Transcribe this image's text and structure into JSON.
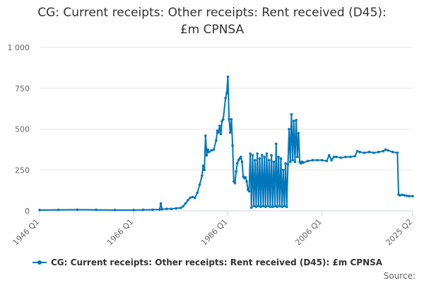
{
  "title_line1": "CG: Current receipts: Other receipts: Rent received (D45):",
  "title_line2": "£m CPNSA",
  "source_label": "Source:",
  "colors": {
    "series": "#0077bb",
    "grid": "#e6e6e6",
    "axis": "#ccd6eb"
  },
  "chart_data": {
    "type": "line",
    "x_axis_type": "quarter",
    "xlim": [
      "1946 Q1",
      "2025 Q2"
    ],
    "x_ticks": [
      "1946 Q1",
      "1966 Q1",
      "1986 Q1",
      "2006 Q1",
      "2025 Q2"
    ],
    "ylim": [
      0,
      1000
    ],
    "y_ticks": [
      0,
      250,
      500,
      750,
      1000
    ],
    "y_tick_labels": [
      "0",
      "250",
      "500",
      "750",
      "1 000"
    ],
    "grid": "horizontal",
    "legend_position": "bottom",
    "series": [
      {
        "name": "CG: Current receipts: Other receipts: Rent received (D45): £m CPNSA",
        "points": [
          [
            "1946 Q1",
            5
          ],
          [
            "1950 Q1",
            6
          ],
          [
            "1954 Q1",
            7
          ],
          [
            "1958 Q1",
            6
          ],
          [
            "1962 Q1",
            5
          ],
          [
            "1966 Q1",
            5
          ],
          [
            "1968 Q1",
            6
          ],
          [
            "1970 Q1",
            7
          ],
          [
            "1971 Q3",
            8
          ],
          [
            "1971 Q4",
            45
          ],
          [
            "1972 Q1",
            10
          ],
          [
            "1973 Q1",
            12
          ],
          [
            "1974 Q1",
            12
          ],
          [
            "1975 Q1",
            15
          ],
          [
            "1976 Q1",
            18
          ],
          [
            "1976 Q3",
            28
          ],
          [
            "1977 Q1",
            45
          ],
          [
            "1977 Q3",
            65
          ],
          [
            "1978 Q1",
            80
          ],
          [
            "1978 Q3",
            85
          ],
          [
            "1979 Q1",
            80
          ],
          [
            "1979 Q3",
            110
          ],
          [
            "1980 Q1",
            160
          ],
          [
            "1980 Q3",
            215
          ],
          [
            "1980 Q4",
            275
          ],
          [
            "1981 Q1",
            250
          ],
          [
            "1981 Q2",
            460
          ],
          [
            "1981 Q3",
            340
          ],
          [
            "1981 Q4",
            375
          ],
          [
            "1982 Q1",
            360
          ],
          [
            "1982 Q3",
            370
          ],
          [
            "1983 Q1",
            375
          ],
          [
            "1983 Q3",
            430
          ],
          [
            "1983 Q4",
            490
          ],
          [
            "1984 Q1",
            480
          ],
          [
            "1984 Q2",
            520
          ],
          [
            "1984 Q3",
            470
          ],
          [
            "1984 Q4",
            550
          ],
          [
            "1985 Q1",
            560
          ],
          [
            "1985 Q3",
            690
          ],
          [
            "1985 Q4",
            720
          ],
          [
            "1986 Q1",
            820
          ],
          [
            "1986 Q2",
            560
          ],
          [
            "1986 Q3",
            480
          ],
          [
            "1986 Q4",
            560
          ],
          [
            "1987 Q1",
            400
          ],
          [
            "1987 Q2",
            180
          ],
          [
            "1987 Q3",
            170
          ],
          [
            "1987 Q4",
            240
          ],
          [
            "1988 Q1",
            290
          ],
          [
            "1988 Q2",
            310
          ],
          [
            "1988 Q3",
            320
          ],
          [
            "1988 Q4",
            330
          ],
          [
            "1989 Q1",
            300
          ],
          [
            "1989 Q2",
            210
          ],
          [
            "1989 Q3",
            200
          ],
          [
            "1989 Q4",
            205
          ],
          [
            "1990 Q1",
            180
          ],
          [
            "1990 Q2",
            130
          ],
          [
            "1990 Q3",
            120
          ],
          [
            "1990 Q4",
            350
          ],
          [
            "1991 Q1",
            20
          ],
          [
            "1991 Q2",
            340
          ],
          [
            "1991 Q3",
            30
          ],
          [
            "1991 Q4",
            310
          ],
          [
            "1992 Q1",
            25
          ],
          [
            "1992 Q2",
            350
          ],
          [
            "1992 Q3",
            30
          ],
          [
            "1992 Q4",
            320
          ],
          [
            "1993 Q1",
            25
          ],
          [
            "1993 Q2",
            340
          ],
          [
            "1993 Q3",
            30
          ],
          [
            "1993 Q4",
            330
          ],
          [
            "1994 Q1",
            25
          ],
          [
            "1994 Q2",
            350
          ],
          [
            "1994 Q3",
            30
          ],
          [
            "1994 Q4",
            310
          ],
          [
            "1995 Q1",
            25
          ],
          [
            "1995 Q2",
            340
          ],
          [
            "1995 Q3",
            25
          ],
          [
            "1995 Q4",
            300
          ],
          [
            "1996 Q1",
            30
          ],
          [
            "1996 Q2",
            410
          ],
          [
            "1996 Q3",
            25
          ],
          [
            "1996 Q4",
            330
          ],
          [
            "1997 Q1",
            30
          ],
          [
            "1997 Q2",
            320
          ],
          [
            "1997 Q3",
            25
          ],
          [
            "1997 Q4",
            250
          ],
          [
            "1998 Q1",
            30
          ],
          [
            "1998 Q2",
            290
          ],
          [
            "1998 Q3",
            25
          ],
          [
            "1998 Q4",
            285
          ],
          [
            "1999 Q1",
            500
          ],
          [
            "1999 Q2",
            300
          ],
          [
            "1999 Q3",
            590
          ],
          [
            "1999 Q4",
            310
          ],
          [
            "2000 Q1",
            550
          ],
          [
            "2000 Q2",
            300
          ],
          [
            "2000 Q3",
            555
          ],
          [
            "2000 Q4",
            330
          ],
          [
            "2001 Q1",
            475
          ],
          [
            "2001 Q2",
            300
          ],
          [
            "2001 Q3",
            290
          ],
          [
            "2001 Q4",
            300
          ],
          [
            "2002 Q1",
            295
          ],
          [
            "2003 Q1",
            305
          ],
          [
            "2004 Q1",
            310
          ],
          [
            "2005 Q1",
            310
          ],
          [
            "2006 Q1",
            310
          ],
          [
            "2007 Q1",
            305
          ],
          [
            "2007 Q3",
            340
          ],
          [
            "2008 Q1",
            310
          ],
          [
            "2008 Q3",
            330
          ],
          [
            "2009 Q1",
            330
          ],
          [
            "2010 Q1",
            325
          ],
          [
            "2011 Q1",
            330
          ],
          [
            "2012 Q1",
            330
          ],
          [
            "2013 Q1",
            335
          ],
          [
            "2013 Q3",
            365
          ],
          [
            "2014 Q1",
            360
          ],
          [
            "2015 Q1",
            355
          ],
          [
            "2016 Q1",
            360
          ],
          [
            "2017 Q1",
            355
          ],
          [
            "2018 Q1",
            360
          ],
          [
            "2019 Q1",
            365
          ],
          [
            "2019 Q3",
            375
          ],
          [
            "2020 Q1",
            370
          ],
          [
            "2021 Q1",
            360
          ],
          [
            "2022 Q1",
            355
          ],
          [
            "2022 Q2",
            100
          ],
          [
            "2022 Q3",
            95
          ],
          [
            "2023 Q1",
            98
          ],
          [
            "2023 Q3",
            95
          ],
          [
            "2024 Q1",
            92
          ],
          [
            "2024 Q3",
            90
          ],
          [
            "2025 Q2",
            90
          ]
        ]
      }
    ]
  }
}
